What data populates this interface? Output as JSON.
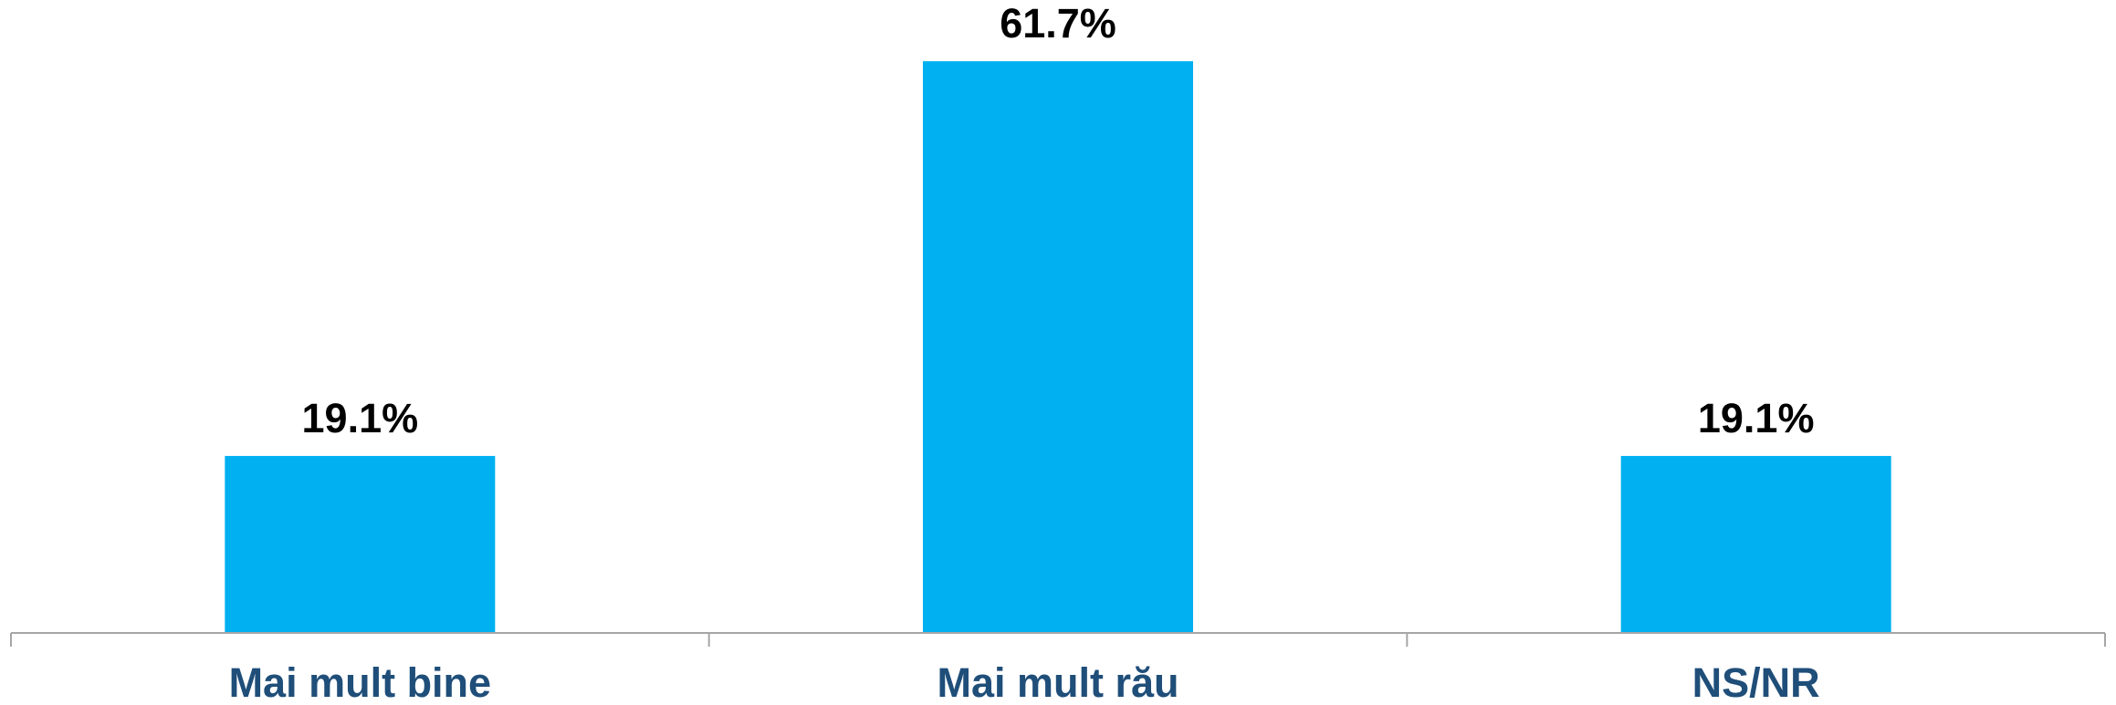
{
  "chart_data": {
    "type": "bar",
    "categories": [
      "Mai mult bine",
      "Mai mult rău",
      "NS/NR"
    ],
    "values": [
      19.1,
      61.7,
      19.1
    ],
    "value_labels": [
      "19.1%",
      "61.7%",
      "19.1%"
    ],
    "color": "#00b0f0"
  }
}
